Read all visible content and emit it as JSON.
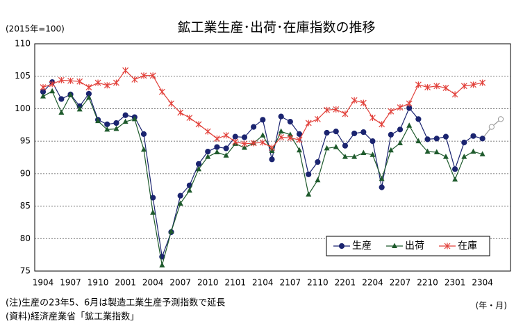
{
  "chart_data": {
    "type": "line",
    "title": "鉱工業生産･出荷･在庫指数の推移",
    "y_label": "(2015年=100)",
    "x_label": "(年・月)",
    "notes": [
      "(注)生産の23年5、6月は製造工業生産予測指数で延長",
      "(資料)経済産業省「鉱工業指数」"
    ],
    "categories": [
      "1904",
      null,
      null,
      "1907",
      null,
      null,
      "1910",
      null,
      null,
      "2001",
      null,
      null,
      "2004",
      null,
      null,
      "2007",
      null,
      null,
      "2010",
      null,
      null,
      "2101",
      null,
      null,
      "2104",
      null,
      null,
      "2107",
      null,
      null,
      "2110",
      null,
      null,
      "2201",
      null,
      null,
      "2204",
      null,
      null,
      "2207",
      null,
      null,
      "2210",
      null,
      null,
      "2301",
      null,
      null,
      "2304",
      null,
      null
    ],
    "ylim": [
      75,
      110
    ],
    "yticks": [
      75,
      80,
      85,
      90,
      95,
      100,
      105,
      110
    ],
    "grid": true,
    "legend": "lower right",
    "series": [
      {
        "name": "生産",
        "color": "#1b2470",
        "marker": "circle",
        "forecast_points": 2,
        "forecast_color": "#9a9a9a",
        "values": [
          102.6,
          104.1,
          101.5,
          102.2,
          100.4,
          102.3,
          98.3,
          97.6,
          97.8,
          99.0,
          98.7,
          96.1,
          86.3,
          77.2,
          81.0,
          86.6,
          88.2,
          91.5,
          93.4,
          94.1,
          93.9,
          95.7,
          95.6,
          97.2,
          98.3,
          92.2,
          98.8,
          98.0,
          96.1,
          89.9,
          91.8,
          96.3,
          96.5,
          94.3,
          96.2,
          96.4,
          95.0,
          87.9,
          96.0,
          96.8,
          100.1,
          98.4,
          95.3,
          95.4,
          95.7,
          90.7,
          94.8,
          95.8,
          95.4,
          97.2,
          98.4
        ]
      },
      {
        "name": "出荷",
        "color": "#1e5a2c",
        "marker": "triangle",
        "values": [
          101.9,
          102.7,
          99.4,
          102.1,
          99.9,
          101.7,
          98.1,
          96.8,
          96.9,
          98.0,
          98.4,
          93.7,
          84.0,
          75.9,
          81.1,
          85.4,
          87.4,
          90.7,
          92.6,
          93.3,
          92.8,
          94.6,
          94.0,
          94.7,
          95.9,
          93.5,
          96.5,
          96.0,
          93.6,
          86.8,
          89.0,
          93.9,
          94.1,
          92.6,
          92.6,
          93.2,
          92.9,
          89.2,
          93.6,
          94.7,
          97.4,
          95.0,
          93.4,
          93.3,
          92.6,
          89.1,
          92.6,
          93.4,
          93.0,
          null,
          null
        ]
      },
      {
        "name": "在庫",
        "color": "#e2403a",
        "marker": "star",
        "values": [
          103.3,
          103.8,
          104.4,
          104.3,
          104.2,
          103.3,
          104.0,
          103.6,
          104.0,
          105.9,
          104.5,
          105.1,
          105.1,
          102.6,
          100.8,
          99.4,
          98.6,
          97.6,
          96.5,
          95.4,
          95.9,
          94.9,
          94.6,
          94.7,
          94.8,
          94.0,
          95.6,
          95.5,
          95.2,
          97.8,
          98.4,
          99.8,
          99.9,
          99.2,
          101.3,
          100.9,
          98.6,
          97.6,
          99.6,
          100.2,
          100.8,
          103.7,
          103.3,
          103.5,
          103.2,
          102.2,
          103.5,
          103.7,
          104.0,
          null,
          null
        ]
      }
    ]
  }
}
